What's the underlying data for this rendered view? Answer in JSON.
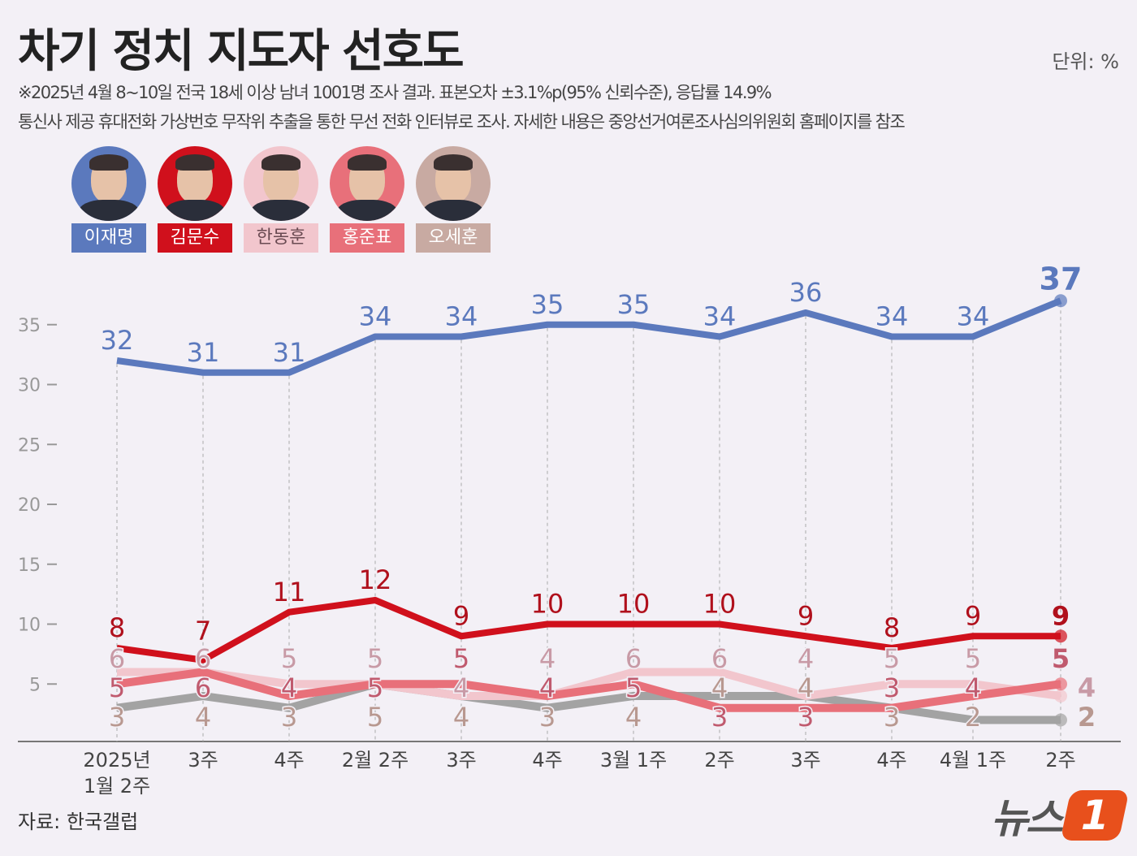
{
  "title": "차기 정치 지도자 선호도",
  "unit": "단위: %",
  "notes": [
    "※2025년 4월 8~10일 전국 18세 이상 남녀 1001명 조사 결과. 표본오차 ±3.1%p(95% 신뢰수준), 응답률 14.9%",
    "통신사 제공 휴대전화 가상번호 무작위 추출을 통한 무선 전화 인터뷰로 조사. 자세한 내용은 중앙선거여론조사심의위원회 홈페이지를 참조"
  ],
  "source": "자료: 한국갤럽",
  "logo": "뉴스1",
  "chart_data": {
    "type": "line",
    "categories": [
      "2025년\n1월 2주",
      "3주",
      "4주",
      "2월 2주",
      "3주",
      "4주",
      "3월 1주",
      "2주",
      "3주",
      "4주",
      "4월 1주",
      "2주"
    ],
    "ylim": [
      0,
      37
    ],
    "yticks": [
      5,
      10,
      15,
      20,
      25,
      30,
      35
    ],
    "grid": false,
    "legend": "top-left",
    "series": [
      {
        "name": "이재명",
        "color": "#5b79bd",
        "label_color": "#5b79bd",
        "values": [
          32,
          31,
          31,
          34,
          34,
          35,
          35,
          34,
          36,
          34,
          34,
          37
        ]
      },
      {
        "name": "김문수",
        "color": "#d0101c",
        "label_color": "#b0101c",
        "values": [
          8,
          7,
          11,
          12,
          9,
          10,
          10,
          10,
          9,
          8,
          9,
          9
        ]
      },
      {
        "name": "한동훈",
        "color": "#f2c6cd",
        "label_color": "#c89aa6",
        "values": [
          6,
          6,
          5,
          5,
          4,
          4,
          6,
          6,
          4,
          5,
          5,
          4
        ]
      },
      {
        "name": "홍준표",
        "color": "#e8707a",
        "label_color": "#c05a6e",
        "values": [
          5,
          6,
          4,
          5,
          5,
          4,
          5,
          3,
          3,
          3,
          4,
          5
        ]
      },
      {
        "name": "오세훈",
        "color": "#a3a3a3",
        "label_color": "#b89890",
        "values": [
          3,
          4,
          3,
          5,
          4,
          3,
          4,
          4,
          4,
          3,
          2,
          2
        ]
      }
    ]
  }
}
